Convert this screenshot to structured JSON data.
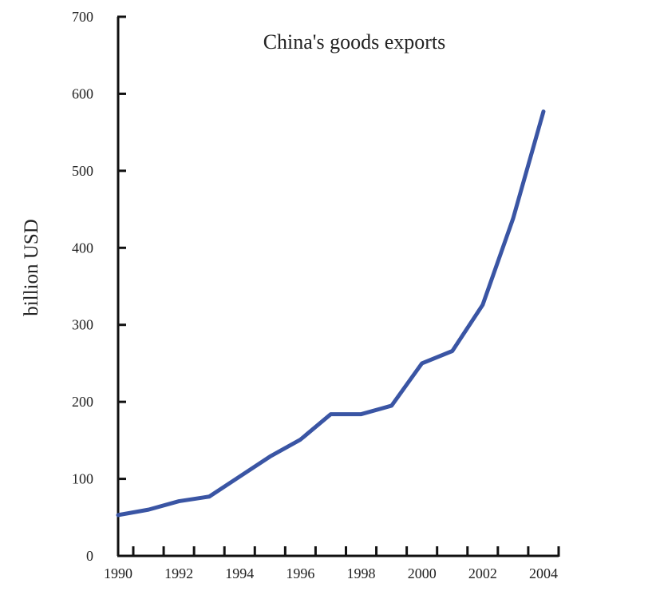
{
  "chart_data": {
    "type": "line",
    "title": "China's goods exports",
    "xlabel": "",
    "ylabel": "billion USD",
    "xlim": [
      1989.8,
      2004.6
    ],
    "ylim": [
      0,
      700
    ],
    "yticks": [
      0,
      100,
      200,
      300,
      400,
      500,
      600,
      700
    ],
    "xtick_labels": [
      "1990",
      "1992",
      "1994",
      "1996",
      "1998",
      "2000",
      "2002",
      "2004"
    ],
    "grid": false,
    "legend": "none",
    "line_color": "#3a55a4",
    "series": [
      {
        "name": "",
        "x": [
          1990,
          1991,
          1992,
          1993,
          1994,
          1995,
          1996,
          1997,
          1998,
          1999,
          2000,
          2001,
          2002,
          2003,
          2004
        ],
        "values": [
          53,
          60,
          71,
          77,
          103,
          129,
          151,
          184,
          184,
          195,
          250,
          266,
          326,
          438,
          577
        ]
      }
    ]
  }
}
